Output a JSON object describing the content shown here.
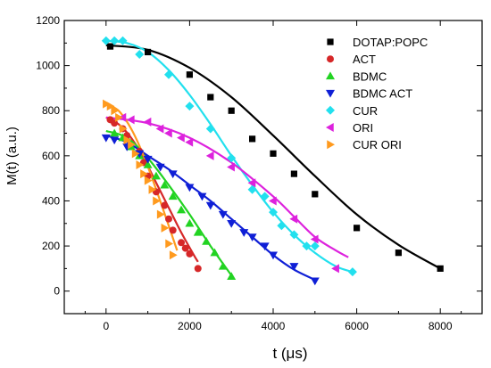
{
  "chart_data": {
    "type": "scatter",
    "xlabel": "t (μs)",
    "ylabel": "M(t) (a.u.)",
    "xlim": [
      -1000,
      9000
    ],
    "ylim": [
      -100,
      1200
    ],
    "xticks": [
      0,
      2000,
      4000,
      6000,
      8000
    ],
    "yticks": [
      0,
      200,
      400,
      600,
      800,
      1000,
      1200
    ],
    "grid": false,
    "legend_position": "top-right",
    "series": [
      {
        "name": "DOTAP:POPC",
        "color": "#000000",
        "marker": "square",
        "points": [
          [
            100,
            1085
          ],
          [
            1000,
            1060
          ],
          [
            2000,
            960
          ],
          [
            2500,
            860
          ],
          [
            3000,
            800
          ],
          [
            3500,
            675
          ],
          [
            4000,
            610
          ],
          [
            4500,
            520
          ],
          [
            5000,
            430
          ],
          [
            6000,
            280
          ],
          [
            7000,
            170
          ],
          [
            8000,
            100
          ]
        ],
        "fit": [
          [
            0,
            1090
          ],
          [
            1000,
            1070
          ],
          [
            2000,
            990
          ],
          [
            3000,
            860
          ],
          [
            4000,
            690
          ],
          [
            5000,
            510
          ],
          [
            6000,
            340
          ],
          [
            7000,
            205
          ],
          [
            8000,
            100
          ]
        ]
      },
      {
        "name": "ACT",
        "color": "#d62728",
        "marker": "circle",
        "points": [
          [
            100,
            760
          ],
          [
            200,
            745
          ],
          [
            400,
            720
          ],
          [
            500,
            690
          ],
          [
            800,
            620
          ],
          [
            900,
            570
          ],
          [
            1000,
            510
          ],
          [
            1200,
            440
          ],
          [
            1400,
            380
          ],
          [
            1500,
            320
          ],
          [
            1600,
            270
          ],
          [
            1800,
            215
          ],
          [
            1900,
            190
          ],
          [
            2000,
            165
          ],
          [
            2200,
            100
          ]
        ],
        "fit": [
          [
            0,
            770
          ],
          [
            300,
            740
          ],
          [
            600,
            680
          ],
          [
            900,
            590
          ],
          [
            1200,
            480
          ],
          [
            1500,
            370
          ],
          [
            1800,
            260
          ],
          [
            2100,
            160
          ],
          [
            2200,
            130
          ]
        ]
      },
      {
        "name": "BDMC",
        "color": "#22d322",
        "marker": "triangle-up",
        "points": [
          [
            200,
            700
          ],
          [
            400,
            680
          ],
          [
            600,
            640
          ],
          [
            800,
            600
          ],
          [
            1000,
            560
          ],
          [
            1200,
            510
          ],
          [
            1400,
            470
          ],
          [
            1600,
            420
          ],
          [
            1800,
            360
          ],
          [
            2000,
            300
          ],
          [
            2200,
            260
          ],
          [
            2400,
            220
          ],
          [
            2600,
            170
          ],
          [
            2800,
            110
          ],
          [
            3000,
            65
          ]
        ],
        "fit": [
          [
            0,
            710
          ],
          [
            500,
            680
          ],
          [
            1000,
            590
          ],
          [
            1500,
            470
          ],
          [
            2000,
            340
          ],
          [
            2500,
            200
          ],
          [
            3000,
            70
          ]
        ]
      },
      {
        "name": "BDMC ACT",
        "color": "#0f1fd6",
        "marker": "triangle-down",
        "points": [
          [
            0,
            680
          ],
          [
            200,
            670
          ],
          [
            500,
            640
          ],
          [
            800,
            610
          ],
          [
            1000,
            585
          ],
          [
            1300,
            550
          ],
          [
            1600,
            520
          ],
          [
            2000,
            460
          ],
          [
            2300,
            420
          ],
          [
            2500,
            380
          ],
          [
            2800,
            340
          ],
          [
            3000,
            300
          ],
          [
            3300,
            260
          ],
          [
            3500,
            240
          ],
          [
            3800,
            200
          ],
          [
            4000,
            160
          ],
          [
            4500,
            110
          ],
          [
            5000,
            45
          ]
        ],
        "fit": [
          [
            0,
            690
          ],
          [
            500,
            660
          ],
          [
            1000,
            600
          ],
          [
            1500,
            540
          ],
          [
            2000,
            470
          ],
          [
            2500,
            400
          ],
          [
            3000,
            320
          ],
          [
            3500,
            240
          ],
          [
            4000,
            160
          ],
          [
            4500,
            95
          ],
          [
            5000,
            50
          ]
        ]
      },
      {
        "name": "CUR",
        "color": "#22e0ee",
        "marker": "diamond",
        "points": [
          [
            0,
            1110
          ],
          [
            200,
            1110
          ],
          [
            400,
            1110
          ],
          [
            800,
            1050
          ],
          [
            1500,
            960
          ],
          [
            2000,
            820
          ],
          [
            2500,
            720
          ],
          [
            3000,
            590
          ],
          [
            3500,
            450
          ],
          [
            3800,
            420
          ],
          [
            4000,
            350
          ],
          [
            4200,
            290
          ],
          [
            4500,
            250
          ],
          [
            4800,
            200
          ],
          [
            5000,
            200
          ],
          [
            5900,
            85
          ]
        ],
        "fit": [
          [
            0,
            1110
          ],
          [
            500,
            1100
          ],
          [
            1000,
            1060
          ],
          [
            1500,
            980
          ],
          [
            2000,
            870
          ],
          [
            2500,
            740
          ],
          [
            3000,
            600
          ],
          [
            3500,
            470
          ],
          [
            4000,
            350
          ],
          [
            4500,
            250
          ],
          [
            5000,
            170
          ],
          [
            5500,
            110
          ],
          [
            5900,
            85
          ]
        ]
      },
      {
        "name": "ORI",
        "color": "#dd22dd",
        "marker": "triangle-left",
        "points": [
          [
            400,
            770
          ],
          [
            600,
            760
          ],
          [
            1000,
            750
          ],
          [
            1300,
            720
          ],
          [
            1500,
            700
          ],
          [
            1800,
            680
          ],
          [
            2000,
            660
          ],
          [
            2500,
            600
          ],
          [
            3000,
            550
          ],
          [
            3500,
            480
          ],
          [
            4000,
            400
          ],
          [
            4500,
            320
          ],
          [
            5000,
            230
          ],
          [
            5500,
            100
          ]
        ],
        "fit": [
          [
            0,
            770
          ],
          [
            1000,
            745
          ],
          [
            2000,
            680
          ],
          [
            3000,
            570
          ],
          [
            4000,
            420
          ],
          [
            4500,
            330
          ],
          [
            5000,
            240
          ],
          [
            5500,
            180
          ],
          [
            5800,
            150
          ]
        ]
      },
      {
        "name": "CUR ORI",
        "color": "#ff9a1e",
        "marker": "triangle-right",
        "points": [
          [
            0,
            830
          ],
          [
            100,
            820
          ],
          [
            200,
            800
          ],
          [
            300,
            770
          ],
          [
            400,
            720
          ],
          [
            500,
            670
          ],
          [
            600,
            650
          ],
          [
            700,
            610
          ],
          [
            800,
            560
          ],
          [
            900,
            520
          ],
          [
            1000,
            490
          ],
          [
            1100,
            450
          ],
          [
            1200,
            400
          ],
          [
            1300,
            340
          ],
          [
            1400,
            280
          ],
          [
            1500,
            210
          ],
          [
            1600,
            160
          ]
        ],
        "fit": [
          [
            0,
            830
          ],
          [
            300,
            800
          ],
          [
            600,
            720
          ],
          [
            900,
            600
          ],
          [
            1200,
            450
          ],
          [
            1500,
            290
          ],
          [
            1700,
            180
          ]
        ]
      }
    ]
  }
}
